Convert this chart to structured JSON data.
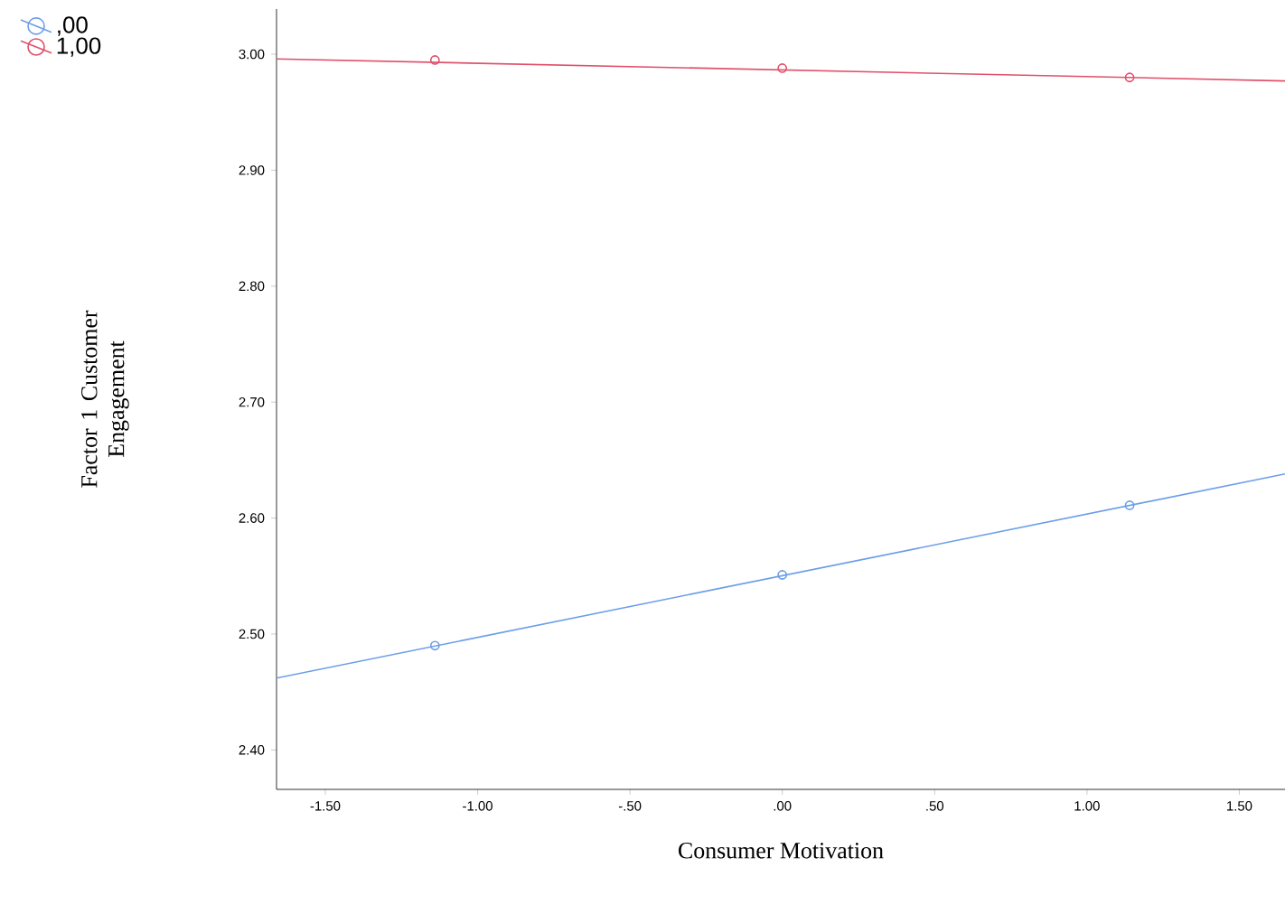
{
  "chart_data": {
    "type": "scatter",
    "xlabel": "Consumer Motivation",
    "ylabel": "Factor 1 Customer Engagement",
    "xlim": [
      -1.66,
      1.65
    ],
    "ylim": [
      2.366,
      3.039
    ],
    "xticks": [
      {
        "value": -1.5,
        "label": "-1.50"
      },
      {
        "value": -1.0,
        "label": "-1.00"
      },
      {
        "value": -0.5,
        "label": "-.50"
      },
      {
        "value": 0,
        "label": ".00"
      },
      {
        "value": 0.5,
        "label": ".50"
      },
      {
        "value": 1.0,
        "label": "1.00"
      },
      {
        "value": 1.5,
        "label": "1.50"
      }
    ],
    "yticks": [
      {
        "value": 2.4,
        "label": "2.40"
      },
      {
        "value": 2.5,
        "label": "2.50"
      },
      {
        "value": 2.6,
        "label": "2.60"
      },
      {
        "value": 2.7,
        "label": "2.70"
      },
      {
        "value": 2.8,
        "label": "2.80"
      },
      {
        "value": 2.9,
        "label": "2.90"
      },
      {
        "value": 3.0,
        "label": "3.00"
      }
    ],
    "legend": "top left",
    "series": [
      {
        "name": ",00",
        "marker": "circle",
        "color": "#6c9ee8",
        "x": [
          -1.14,
          0,
          1.14
        ],
        "values": [
          2.49,
          2.551,
          2.611
        ]
      },
      {
        "name": "1,00",
        "marker": "circle",
        "color": "#e0506a",
        "x": [
          -1.14,
          0,
          1.14
        ],
        "values": [
          2.995,
          2.988,
          2.98
        ]
      },
      {
        "type": "line",
        "color": "#6c9ee8",
        "x": [
          -1.66,
          1.65
        ],
        "values": [
          2.462,
          2.638
        ]
      },
      {
        "type": "line",
        "color": "#e0506a",
        "x": [
          -1.66,
          1.65
        ],
        "values": [
          2.996,
          2.977
        ]
      }
    ]
  }
}
